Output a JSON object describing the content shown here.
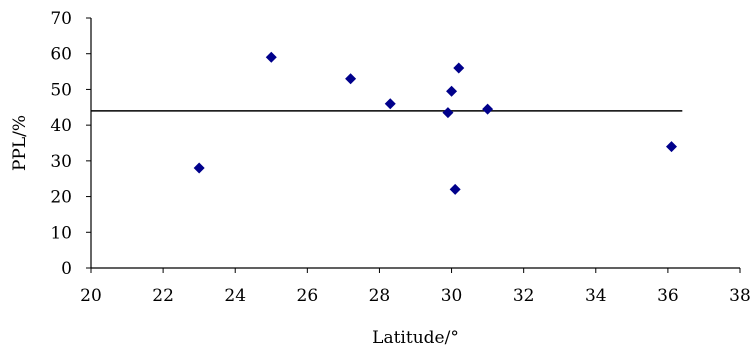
{
  "chart_data": {
    "type": "scatter",
    "xlabel": "Latitude/°",
    "ylabel": "PPL/%",
    "xlim": [
      20,
      38
    ],
    "ylim": [
      0,
      70
    ],
    "x_ticks": [
      20,
      22,
      24,
      26,
      28,
      30,
      32,
      34,
      36,
      38
    ],
    "y_ticks": [
      0,
      10,
      20,
      30,
      40,
      50,
      60,
      70
    ],
    "grid": false,
    "legend": "none",
    "marker": "diamond",
    "marker_color": "#00008B",
    "points": [
      {
        "x": 23.0,
        "y": 28.0
      },
      {
        "x": 25.0,
        "y": 59.0
      },
      {
        "x": 27.2,
        "y": 53.0
      },
      {
        "x": 28.3,
        "y": 46.0
      },
      {
        "x": 29.9,
        "y": 43.5
      },
      {
        "x": 30.0,
        "y": 49.5
      },
      {
        "x": 30.1,
        "y": 22.0
      },
      {
        "x": 30.2,
        "y": 56.0
      },
      {
        "x": 31.0,
        "y": 44.5
      },
      {
        "x": 36.1,
        "y": 34.0
      }
    ],
    "reference_line": {
      "y": 44,
      "x_start": 20,
      "x_end": 36.4,
      "color": "#000000"
    }
  }
}
